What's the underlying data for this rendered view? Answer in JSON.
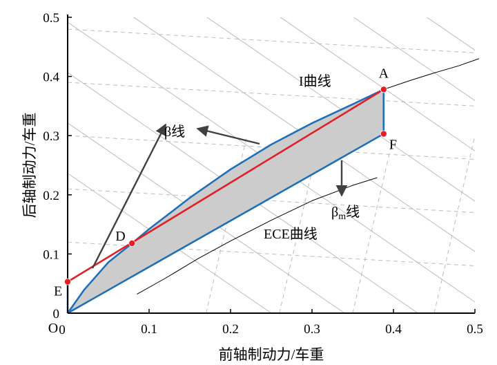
{
  "chart_data": {
    "type": "line",
    "title": "",
    "xlabel": "前轴制动力/车重",
    "ylabel": "后轴制动力/车重",
    "xlim": [
      0,
      0.5
    ],
    "ylim": [
      0,
      0.5
    ],
    "x_ticks": [
      "0",
      "0.1",
      "0.2",
      "0.3",
      "0.4",
      "0.5"
    ],
    "y_ticks": [
      "0",
      "0.1",
      "0.2",
      "0.3",
      "0.4",
      "0.5"
    ],
    "origin_label": "O",
    "grid": false,
    "points": [
      {
        "name": "A",
        "x": 0.388,
        "y": 0.378
      },
      {
        "name": "F",
        "x": 0.388,
        "y": 0.303
      },
      {
        "name": "D",
        "x": 0.079,
        "y": 0.118
      },
      {
        "name": "E",
        "x": 0.0,
        "y": 0.053
      }
    ],
    "series": [
      {
        "name": "I曲线",
        "color": "#1f6fb8",
        "x": [
          0,
          0.02,
          0.05,
          0.079,
          0.1,
          0.15,
          0.2,
          0.25,
          0.3,
          0.35,
          0.388
        ],
        "y": [
          0,
          0.039,
          0.086,
          0.118,
          0.142,
          0.195,
          0.243,
          0.285,
          0.321,
          0.353,
          0.378
        ]
      },
      {
        "name": "I curve extension",
        "color": "#000000",
        "x": [
          0.388,
          0.42,
          0.45,
          0.48,
          0.505
        ],
        "y": [
          0.378,
          0.393,
          0.406,
          0.418,
          0.43
        ]
      },
      {
        "name": "β线",
        "color": "#e41e26",
        "x": [
          0,
          0.388
        ],
        "y": [
          0.053,
          0.378
        ]
      },
      {
        "name": "βm线",
        "color": "#1f6fb8",
        "x": [
          0,
          0.388
        ],
        "y": [
          0,
          0.303
        ]
      },
      {
        "name": "ECE曲线",
        "color": "#000000",
        "x": [
          0.085,
          0.12,
          0.16,
          0.2,
          0.25,
          0.3,
          0.35,
          0.38
        ],
        "y": [
          0.032,
          0.059,
          0.092,
          0.122,
          0.157,
          0.19,
          0.216,
          0.229
        ]
      },
      {
        "name": "F-A",
        "color": "#1f6fb8",
        "x": [
          0.388,
          0.388
        ],
        "y": [
          0.303,
          0.378
        ]
      },
      {
        "name": "O-E",
        "color": "#1f6fb8",
        "x": [
          0,
          0
        ],
        "y": [
          0,
          0.053
        ]
      }
    ],
    "annotations": [
      {
        "text": "I曲线",
        "x": 0.285,
        "y": 0.39
      },
      {
        "text": "β线",
        "x": 0.12,
        "y": 0.305
      },
      {
        "text": "βm线",
        "x": 0.325,
        "y": 0.175
      },
      {
        "text": "ECE曲线",
        "x": 0.24,
        "y": 0.13
      }
    ],
    "colors": {
      "highlight_fill": "#cccccc",
      "line_blue": "#1f6fb8",
      "line_red": "#e41e26",
      "marker": "#e41e26",
      "arrow": "#404040",
      "dashed": "#bbbbbb"
    }
  }
}
